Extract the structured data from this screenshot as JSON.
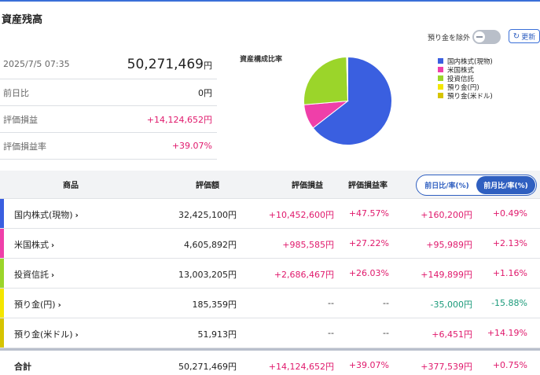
{
  "header": {
    "title": "資産残高"
  },
  "controls": {
    "exclude_label": "預り金を除外",
    "exclude_toggle_on": false,
    "refresh_label": "更新",
    "refresh_icon": "refresh-icon"
  },
  "summary": {
    "datetime": "2025/7/5 07:35",
    "total_value": "50,271,469",
    "total_unit": "円",
    "rows": [
      {
        "label": "前日比",
        "value": "0円"
      },
      {
        "label": "評価損益",
        "value": "+14,124,652円"
      },
      {
        "label": "評価損益率",
        "value": "+39.07%"
      }
    ]
  },
  "chart_data": {
    "type": "pie",
    "title": "資産構成比率",
    "categories": [
      "国内株式(現物)",
      "米国株式",
      "投資信託",
      "預り金(円)",
      "預り金(米ドル)"
    ],
    "values": [
      32425100,
      4605892,
      13003205,
      185359,
      51913
    ],
    "colors": [
      "#3a5fe0",
      "#ef3fa9",
      "#9bd52a",
      "#f4e600",
      "#d6c400"
    ],
    "legend_position": "right"
  },
  "table": {
    "headers": {
      "product": "商品",
      "valuation": "評価額",
      "pnl": "評価損益",
      "pnl_rate": "評価損益率"
    },
    "toggle": {
      "options": [
        "前日比/率(%)",
        "前月比/率(%)"
      ],
      "selected": "前月比/率(%)"
    },
    "rows": [
      {
        "name": "国内株式(現物)",
        "color": "#3a5fe0",
        "valuation": "32,425,100円",
        "pnl": "+10,452,600円",
        "pnl_rate": "+47.57%",
        "change": "+160,200円",
        "change_rate": "+0.49%",
        "change_sign": "pos",
        "change_rate_sign": "pos"
      },
      {
        "name": "米国株式",
        "color": "#ef3fa9",
        "valuation": "4,605,892円",
        "pnl": "+985,585円",
        "pnl_rate": "+27.22%",
        "change": "+95,989円",
        "change_rate": "+2.13%",
        "change_sign": "pos",
        "change_rate_sign": "pos"
      },
      {
        "name": "投資信託",
        "color": "#9bd52a",
        "valuation": "13,003,205円",
        "pnl": "+2,686,467円",
        "pnl_rate": "+26.03%",
        "change": "+149,899円",
        "change_rate": "+1.16%",
        "change_sign": "pos",
        "change_rate_sign": "pos"
      },
      {
        "name": "預り金(円)",
        "color": "#f4e600",
        "valuation": "185,359円",
        "pnl": "--",
        "pnl_rate": "--",
        "change": "-35,000円",
        "change_rate": "-15.88%",
        "change_sign": "neg",
        "change_rate_sign": "neg"
      },
      {
        "name": "預り金(米ドル)",
        "color": "#d6c400",
        "valuation": "51,913円",
        "pnl": "--",
        "pnl_rate": "--",
        "change": "+6,451円",
        "change_rate": "+14.19%",
        "change_sign": "pos",
        "change_rate_sign": "pos"
      }
    ],
    "total": {
      "name": "合計",
      "valuation": "50,271,469円",
      "pnl": "+14,124,652円",
      "pnl_rate": "+39.07%",
      "change": "+377,539円",
      "change_rate": "+0.75%"
    }
  }
}
